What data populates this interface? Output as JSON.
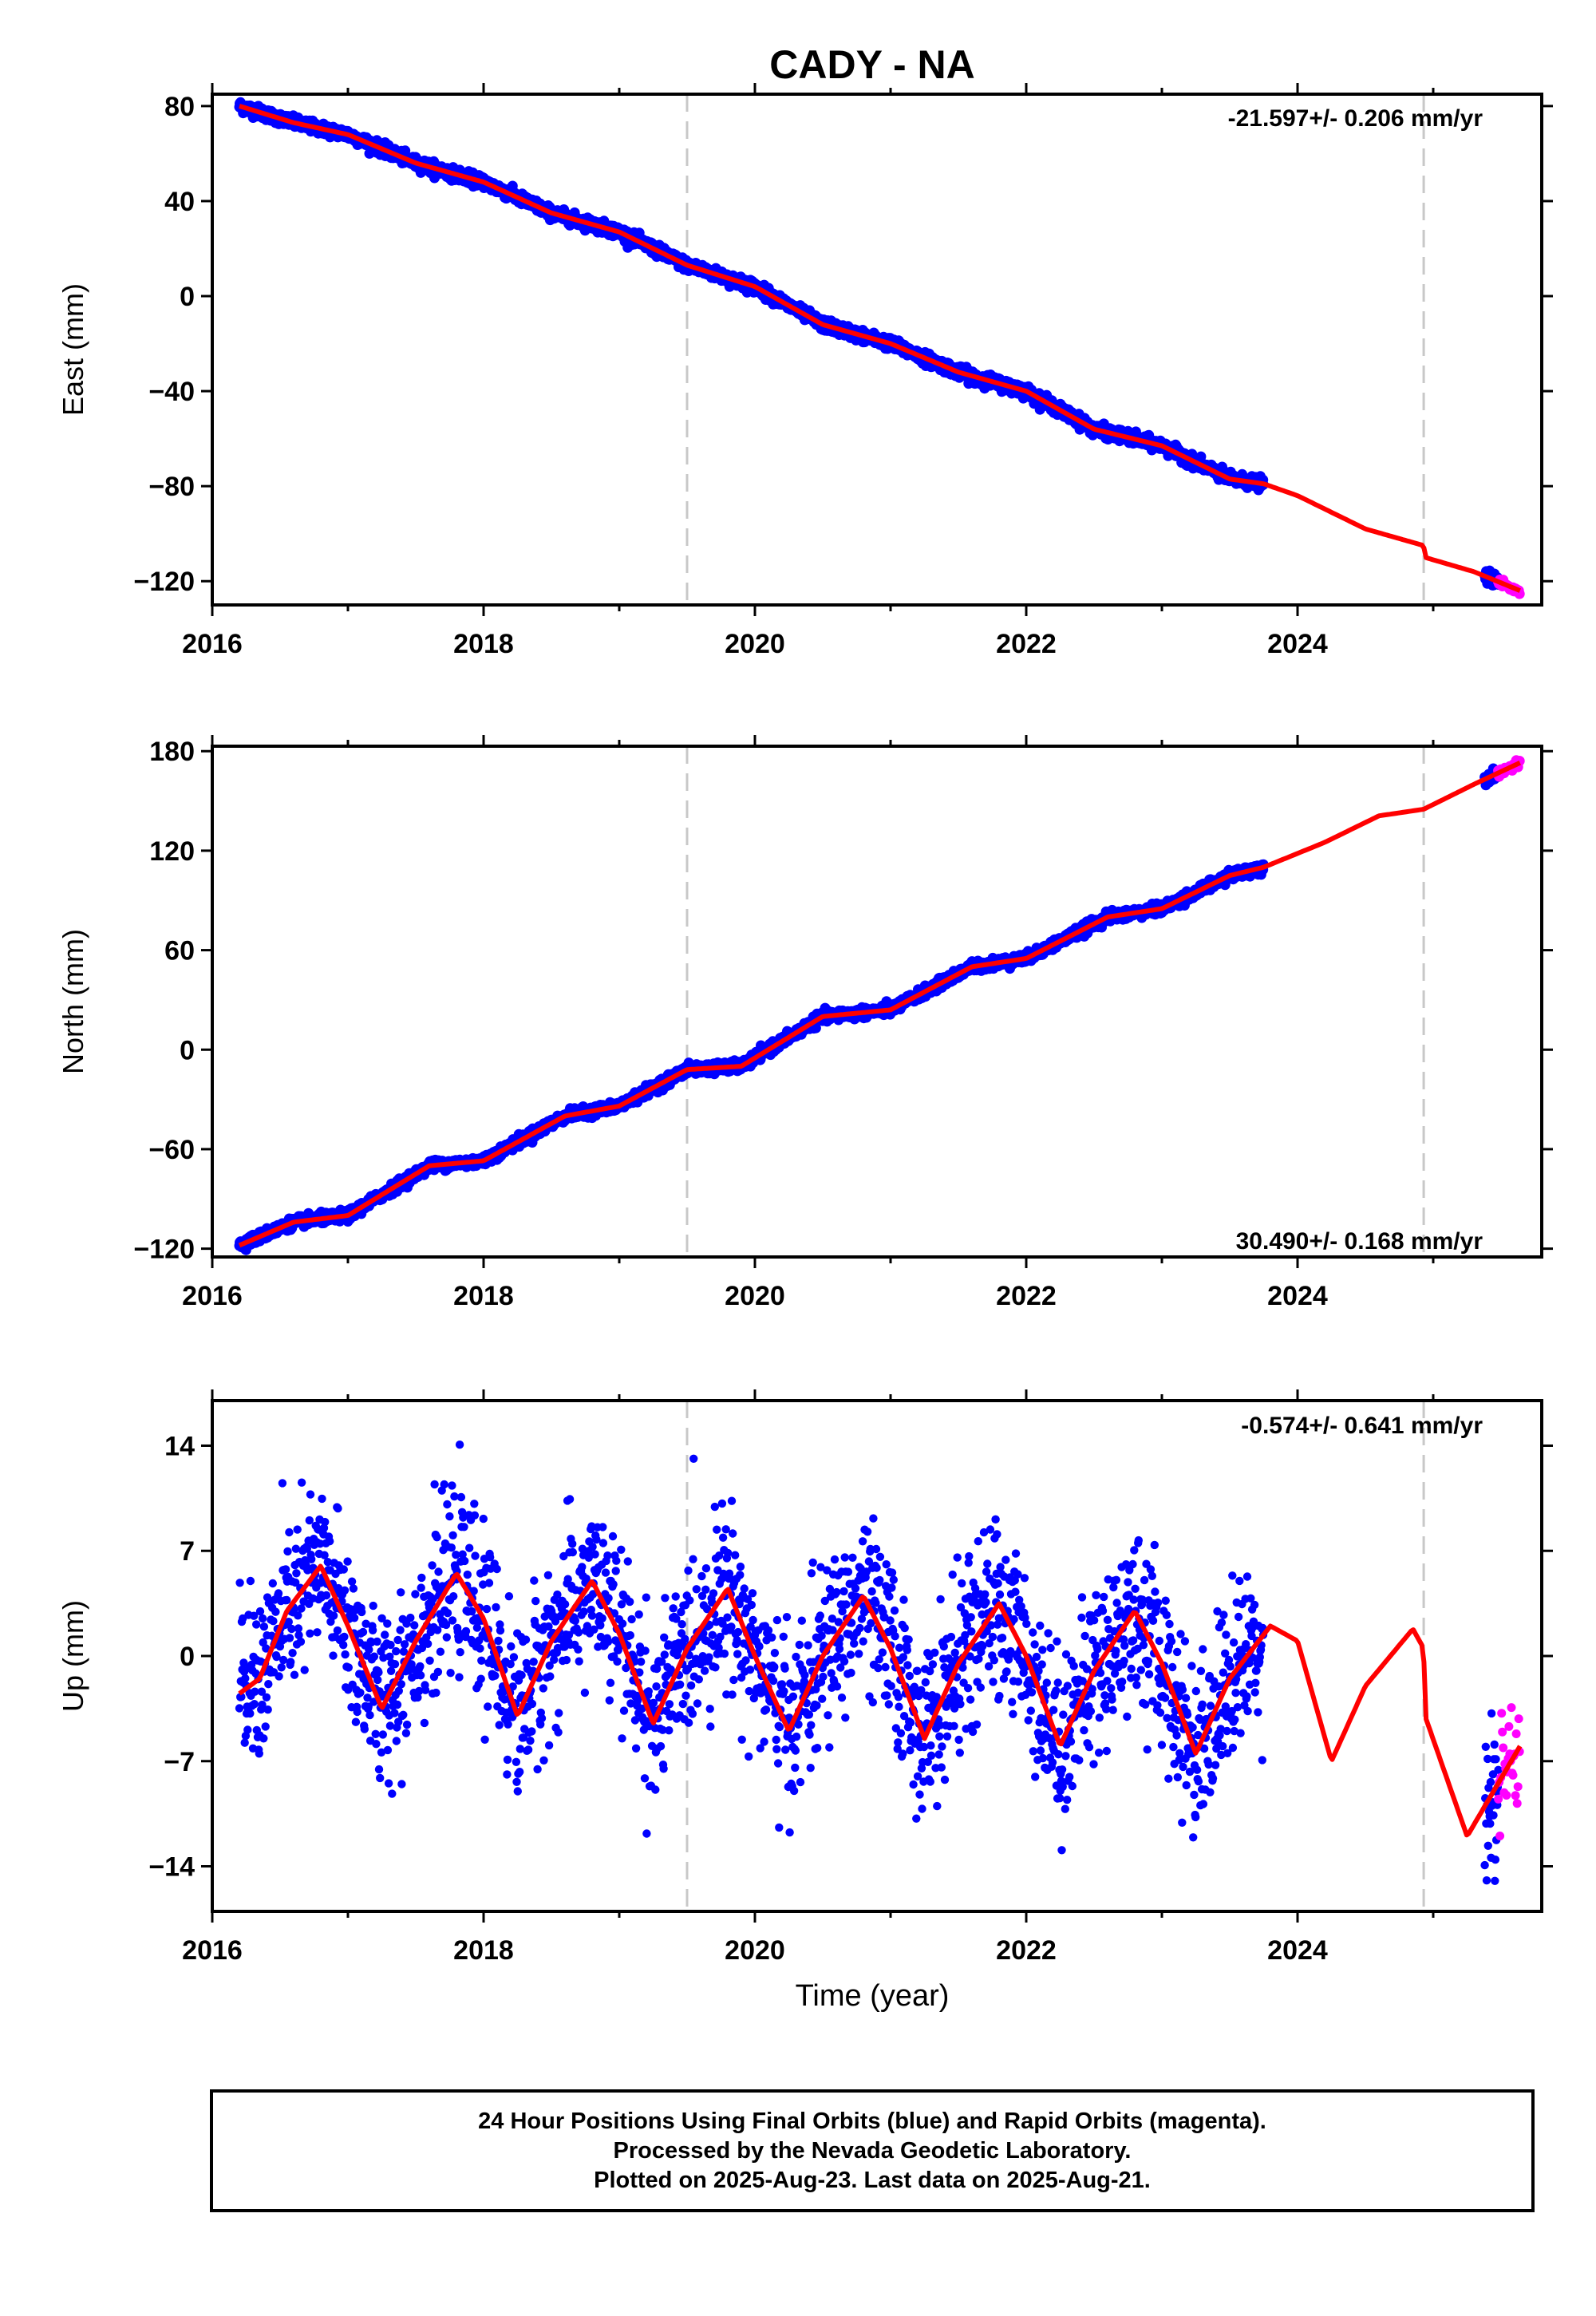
{
  "title": "CADY - NA",
  "colors": {
    "final": "#0000ff",
    "rapid": "#ff00ff",
    "model": "#ff0000",
    "break_line": "#c8c8c8"
  },
  "x_label": "Time (year)",
  "footer": {
    "line1": "24 Hour Positions Using Final Orbits (blue) and Rapid Orbits (magenta).",
    "line2": "Processed by the Nevada Geodetic Laboratory.",
    "line3": "Plotted on 2025-Aug-23. Last data on 2025-Aug-21."
  },
  "chart_data": [
    {
      "type": "scatter",
      "ylabel": "East (mm)",
      "rate_label": "-21.597+/- 0.206 mm/yr",
      "xlim": [
        2016.0,
        2025.8
      ],
      "ylim": [
        -130,
        85
      ],
      "x_ticks": [
        2016,
        2018,
        2020,
        2022,
        2024
      ],
      "y_ticks": [
        80,
        40,
        0,
        -40,
        -80,
        -120
      ],
      "breaks": [
        2019.5,
        2024.93
      ],
      "final_range": [
        2016.2,
        2023.75
      ],
      "rapid_range": [
        2025.48,
        2025.64
      ],
      "model_curve": {
        "x": [
          2016.2,
          2016.6,
          2017.0,
          2017.5,
          2018.0,
          2018.5,
          2019.0,
          2019.5,
          2020.0,
          2020.5,
          2021.0,
          2021.5,
          2022.0,
          2022.5,
          2023.0,
          2023.5,
          2023.75,
          2024.0,
          2024.5,
          2024.93,
          2024.94,
          2025.3,
          2025.64
        ],
        "y": [
          80,
          73,
          68,
          56,
          48,
          35,
          27,
          13,
          4,
          -12,
          -20,
          -32,
          -40,
          -56,
          -63,
          -77,
          -79,
          -84,
          -98,
          -105,
          -110,
          -116,
          -124
        ]
      },
      "noise_mm": 1.2
    },
    {
      "type": "scatter",
      "ylabel": "North (mm)",
      "rate_label": "30.490+/- 0.168 mm/yr",
      "xlim": [
        2016.0,
        2025.8
      ],
      "ylim": [
        -125,
        183
      ],
      "x_ticks": [
        2016,
        2018,
        2020,
        2022,
        2024
      ],
      "y_ticks": [
        180,
        120,
        60,
        0,
        -60,
        -120
      ],
      "breaks": [
        2019.5,
        2024.93
      ],
      "final_range": [
        2016.2,
        2023.75
      ],
      "rapid_range": [
        2025.48,
        2025.64
      ],
      "model_curve": {
        "x": [
          2016.2,
          2016.6,
          2017.0,
          2017.6,
          2018.0,
          2018.6,
          2019.0,
          2019.5,
          2019.9,
          2020.5,
          2021.0,
          2021.6,
          2022.0,
          2022.6,
          2023.0,
          2023.5,
          2023.75,
          2024.2,
          2024.6,
          2024.93,
          2025.3,
          2025.64
        ],
        "y": [
          -118,
          -104,
          -100,
          -70,
          -67,
          -40,
          -34,
          -12,
          -10,
          20,
          24,
          50,
          55,
          80,
          85,
          105,
          110,
          125,
          141,
          145,
          160,
          173
        ]
      },
      "noise_mm": 1.5
    },
    {
      "type": "scatter",
      "ylabel": "Up (mm)",
      "rate_label": "-0.574+/- 0.641 mm/yr",
      "xlim": [
        2016.0,
        2025.8
      ],
      "ylim": [
        -17,
        17
      ],
      "x_ticks": [
        2016,
        2018,
        2020,
        2022,
        2024
      ],
      "y_ticks": [
        14,
        7,
        0,
        -7,
        -14
      ],
      "breaks": [
        2019.5,
        2024.93
      ],
      "final_range": [
        2016.2,
        2023.75
      ],
      "rapid_range": [
        2025.48,
        2025.64
      ],
      "model_curve": {
        "x": [
          2016.2,
          2016.35,
          2016.55,
          2016.8,
          2017.0,
          2017.25,
          2017.5,
          2017.8,
          2018.0,
          2018.25,
          2018.5,
          2018.8,
          2019.0,
          2019.25,
          2019.5,
          2019.8,
          2020.0,
          2020.25,
          2020.5,
          2020.8,
          2021.0,
          2021.25,
          2021.5,
          2021.8,
          2022.0,
          2022.25,
          2022.5,
          2022.8,
          2023.0,
          2023.25,
          2023.5,
          2023.8,
          2024.0,
          2024.25,
          2024.5,
          2024.85,
          2024.93,
          2024.94,
          2025.25,
          2025.64
        ],
        "y": [
          -2.5,
          -1.5,
          3,
          6,
          2,
          -3.5,
          1,
          5.5,
          2.5,
          -4,
          1,
          5,
          1.5,
          -4.5,
          0.5,
          4.5,
          0,
          -5,
          0,
          4,
          0.5,
          -5.5,
          -0.5,
          3.5,
          0,
          -6,
          -1,
          3,
          -0.5,
          -6.5,
          -1.5,
          2,
          1,
          -7,
          -2,
          1.8,
          0.5,
          -4,
          -12,
          -6
        ]
      },
      "seasonal_amplitude_mm": 4.5,
      "noise_mm": 2.8
    }
  ]
}
